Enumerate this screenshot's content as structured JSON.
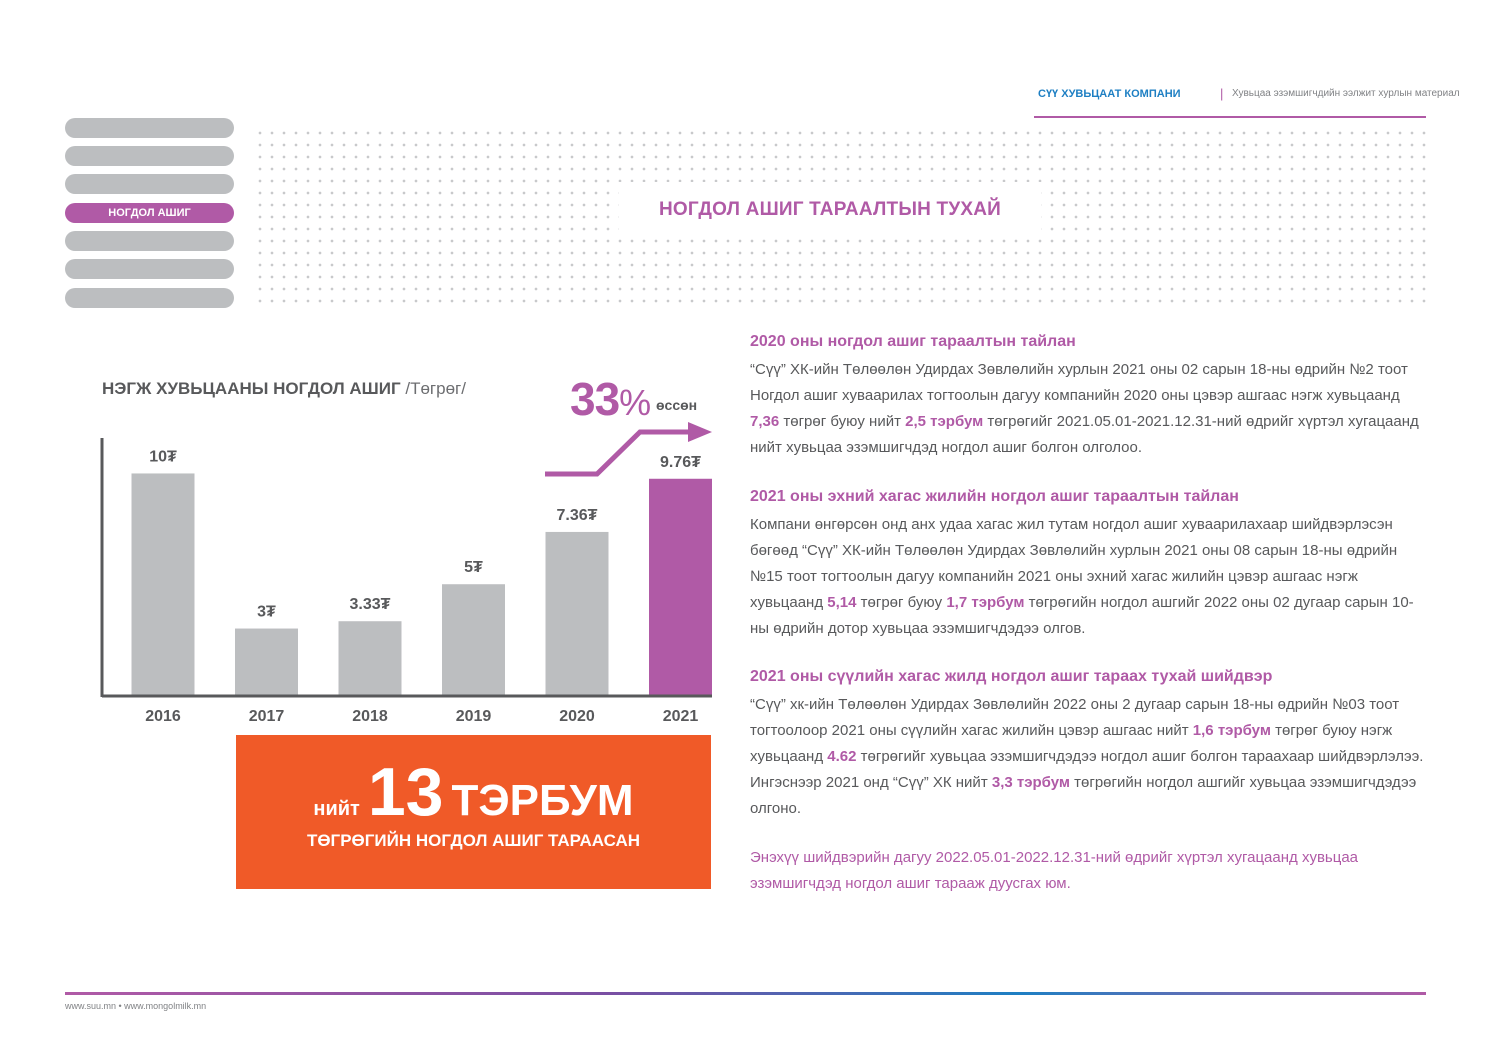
{
  "header": {
    "company": "СҮҮ ХУВЬЦААТ КОМПАНИ",
    "separator": "|",
    "subtitle": "Хувьцаа эзэмшигчдийн ээлжит хурлын материал"
  },
  "nav": {
    "active_label": "НОГДОЛ АШИГ"
  },
  "page_title": "НОГДОЛ АШИГ ТАРААЛТЫН ТУХАЙ",
  "chart": {
    "title": "НЭГЖ ХУВЬЦААНЫ НОГДОЛ АШИГ",
    "unit": "/Төгрөг/",
    "growth_value": "33",
    "growth_sign": "%",
    "growth_word": "өссөн"
  },
  "chart_data": {
    "type": "bar",
    "title": "НЭГЖ ХУВЬЦААНЫ НОГДОЛ АШИГ /Төгрөг/",
    "categories": [
      "2016",
      "2017",
      "2018",
      "2019",
      "2020",
      "2021"
    ],
    "values": [
      10,
      3,
      3.33,
      5,
      7.36,
      9.76
    ],
    "labels": [
      "10₮",
      "3₮",
      "3.33₮",
      "5₮",
      "7.36₮",
      "9.76₮"
    ],
    "highlight_index": 5,
    "ylim": [
      0,
      11.6
    ],
    "grid": false,
    "colors": {
      "bar": "#bcbec0",
      "highlight": "#b05aa6",
      "axis": "#58595b"
    },
    "annotation": "33% өссөн"
  },
  "total": {
    "prefix": "нийт",
    "number": "13",
    "word": "ТЭРБУМ",
    "caption": "ТӨГРӨГИЙН НОГДОЛ АШИГ ТАРААСАН"
  },
  "sections": [
    {
      "heading": "2020 оны ногдол ашиг тараалтын тайлан",
      "parts": [
        "“Сүү” ХК-ийн Төлөөлөн Удирдах Зөвлөлийн хурлын 2021 оны 02 сарын 18-ны өдрийн №2 тоот Ногдол ашиг хуваарилах тогтоолын дагуу компанийн 2020 оны цэвэр ашгаас нэгж хувьцаанд ",
        "7,36",
        " төгрөг буюу нийт ",
        "2,5 тэрбум",
        " төгрөгийг 2021.05.01-2021.12.31-ний өдрийг хүртэл хугацаанд нийт хувьцаа эзэмшигчдэд ногдол ашиг болгон олголоо."
      ]
    },
    {
      "heading": "2021 оны эхний хагас жилийн ногдол ашиг тараалтын тайлан",
      "parts": [
        "Компани өнгөрсөн онд анх удаа хагас жил тутам ногдол ашиг хуваарилахаар шийдвэрлэсэн бөгөөд “Сүү” ХК-ийн Төлөөлөн Удирдах Зөвлөлийн хурлын 2021 оны 08 сарын 18-ны өдрийн №15 тоот тогтоолын дагуу компанийн 2021 оны эхний хагас жилийн цэвэр ашгаас нэгж хувьцаанд ",
        "5,14",
        " төгрөг буюу ",
        "1,7 тэрбум",
        " төгрөгийн ногдол ашгийг 2022 оны 02 дугаар сарын 10-ны өдрийн дотор хувьцаа эзэмшигчдэдээ олгов."
      ]
    },
    {
      "heading": "2021 оны сүүлийн хагас жилд ногдол ашиг тараах тухай шийдвэр",
      "parts": [
        "“Сүү” хк-ийн Төлөөлөн Удирдах Зөвлөлийн 2022 оны 2 дугаар сарын 18-ны өдрийн №03 тоот тогтоолоор 2021 оны сүүлийн хагас жилийн цэвэр ашгаас нийт ",
        "1,6 тэрбум",
        " төгрөг буюу нэгж хувьцаанд ",
        "4.62",
        " төгрөгийг хувьцаа эзэмшигчдэдээ ногдол ашиг болгон тараахаар шийдвэрлэлээ. Ингэснээр 2021 онд “Сүү” ХК нийт ",
        "3,3 тэрбум",
        " төгрөгийн ногдол ашгийг хувьцаа эзэмшигчдэдээ олгоно."
      ]
    }
  ],
  "note": "Энэхүү шийдвэрийн дагуу 2022.05.01-2022.12.31-ний өдрийг хүртэл хугацаанд хувьцаа эзэмшигчдэд  ногдол ашиг  тарааж дуусгах юм.",
  "footer": "www.suu.mn • www.mongolmilk.mn"
}
